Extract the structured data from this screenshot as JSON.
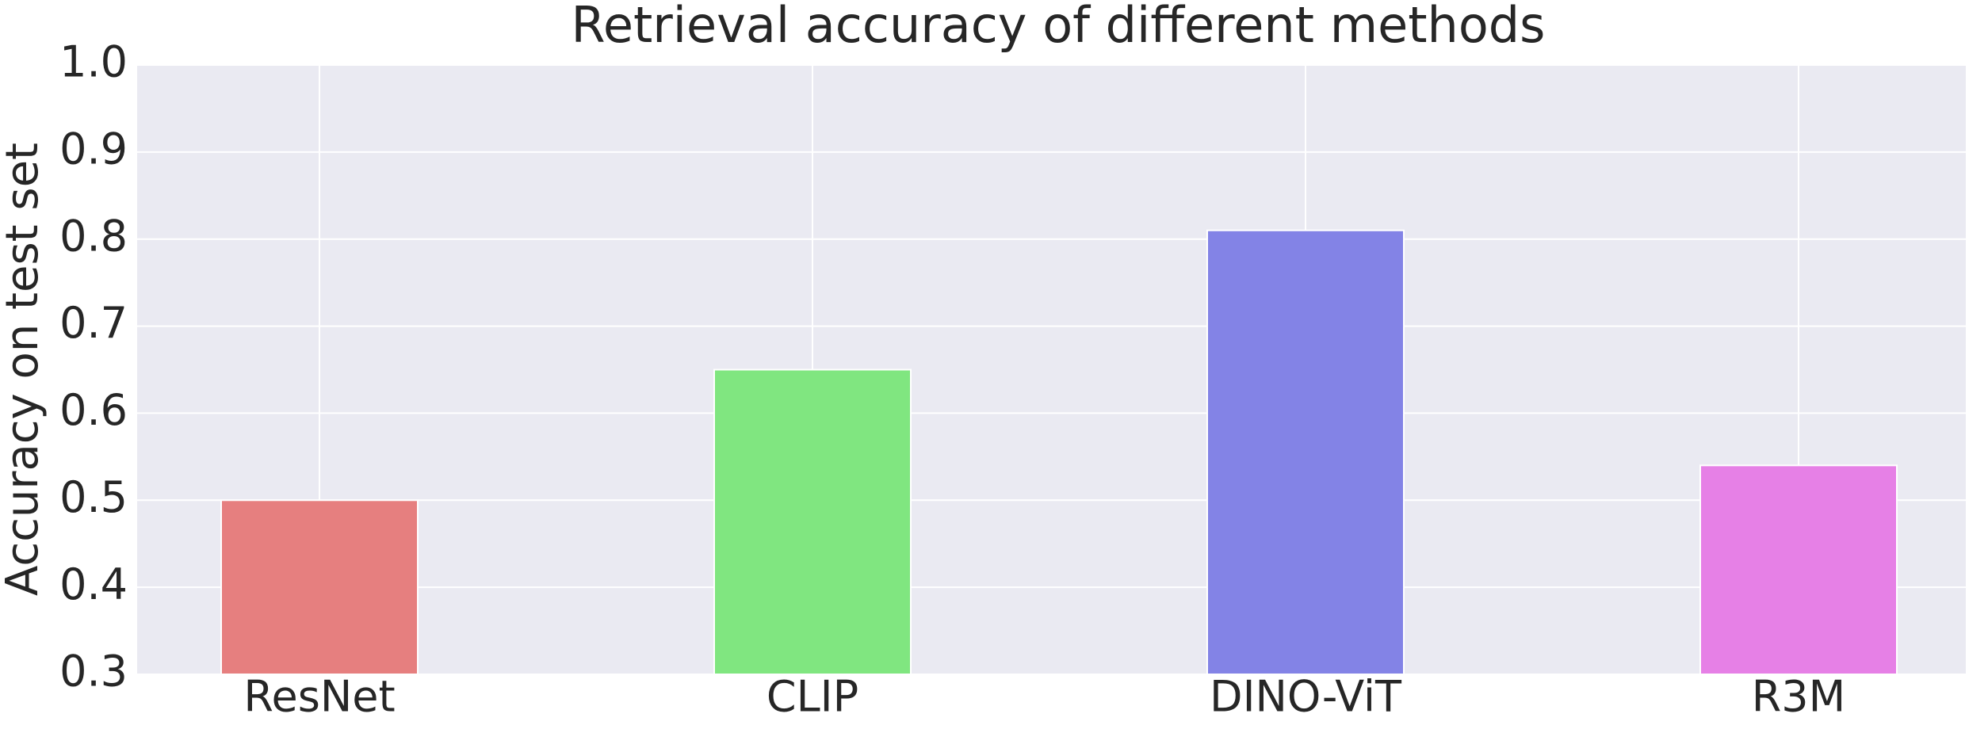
{
  "chart_data": {
    "type": "bar",
    "title": "Retrieval accuracy of different methods",
    "y_label": "Accuracy on test set",
    "categories": [
      "ResNet",
      "CLIP",
      "DINO-ViT",
      "R3M"
    ],
    "values": [
      0.5,
      0.65,
      0.81,
      0.54
    ],
    "colors": [
      "#e67f7f",
      "#80e680",
      "#8383e6",
      "#e680e6"
    ],
    "ylim": [
      0.3,
      1.0
    ],
    "yticks": [
      0.3,
      0.4,
      0.5,
      0.6,
      0.7,
      0.8,
      0.9,
      {
        "value": 1,
        "label": "1.0"
      }
    ],
    "grid": true
  }
}
